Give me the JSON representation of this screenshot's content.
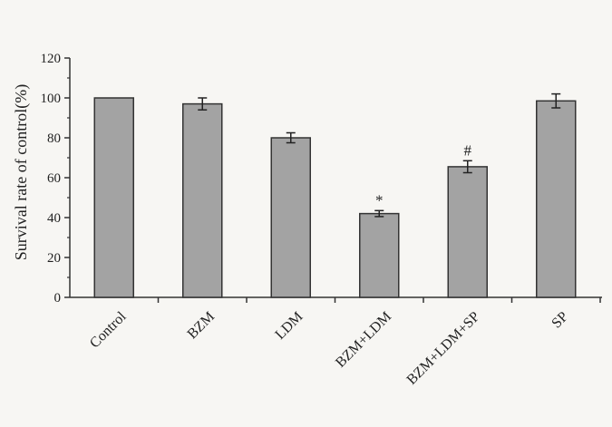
{
  "chart_data": {
    "type": "bar",
    "title": "",
    "xlabel": "",
    "ylabel": "Survival rate of control(%)",
    "ylim": [
      0,
      120
    ],
    "yticks": [
      0,
      20,
      40,
      60,
      80,
      100,
      120
    ],
    "grid": false,
    "categories": [
      "Control",
      "BZM",
      "LDM",
      "BZM+LDM",
      "BZM+LDM+SP",
      "SP"
    ],
    "values": [
      100,
      97,
      80,
      42,
      65.5,
      98.5
    ],
    "errors": [
      0,
      3,
      2.5,
      1.5,
      3,
      3.5
    ],
    "annotations": [
      "",
      "",
      "",
      "*",
      "#",
      ""
    ],
    "bar_color": "#a3a3a3",
    "edge_color": "#333333"
  }
}
